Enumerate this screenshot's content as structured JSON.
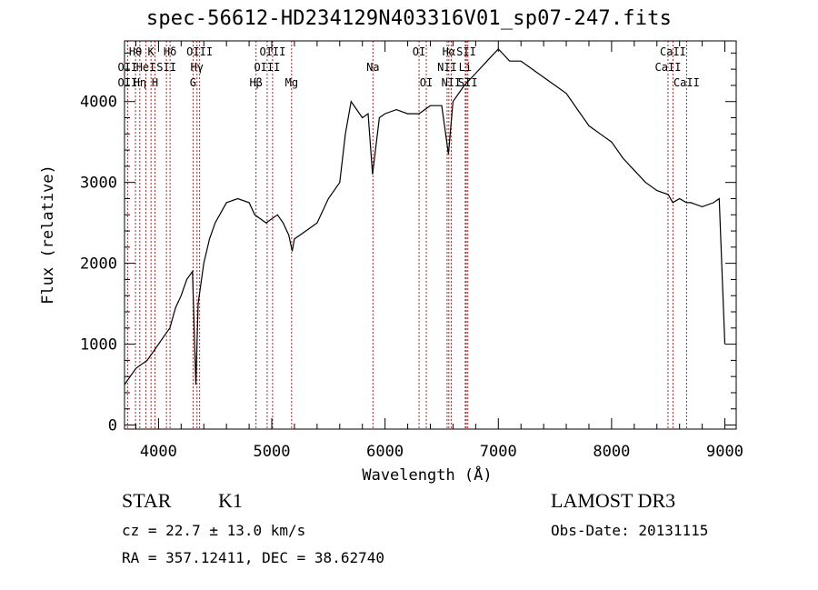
{
  "title": "spec-56612-HD234129N403316V01_sp07-247.fits",
  "chart_data": {
    "type": "line",
    "xlabel": "Wavelength (Å)",
    "ylabel": "Flux (relative)",
    "xlim": [
      3700,
      9100
    ],
    "ylim": [
      -50,
      4750
    ],
    "xticks": [
      4000,
      5000,
      6000,
      7000,
      8000,
      9000
    ],
    "yticks": [
      0,
      1000,
      2000,
      3000,
      4000
    ],
    "spectrum": {
      "x": [
        3700,
        3750,
        3800,
        3850,
        3900,
        3950,
        4000,
        4050,
        4100,
        4150,
        4200,
        4250,
        4300,
        4330,
        4350,
        4400,
        4450,
        4500,
        4600,
        4700,
        4800,
        4850,
        4900,
        4950,
        5000,
        5050,
        5100,
        5150,
        5180,
        5200,
        5300,
        5400,
        5500,
        5600,
        5650,
        5700,
        5750,
        5800,
        5850,
        5890,
        5950,
        6000,
        6100,
        6200,
        6300,
        6400,
        6500,
        6560,
        6600,
        6700,
        6800,
        6900,
        7000,
        7100,
        7200,
        7300,
        7400,
        7500,
        7600,
        7700,
        7800,
        7900,
        8000,
        8100,
        8200,
        8300,
        8400,
        8500,
        8540,
        8600,
        8660,
        8700,
        8800,
        8900,
        8950,
        9000
      ],
      "y": [
        500,
        600,
        700,
        750,
        800,
        900,
        1000,
        1100,
        1200,
        1450,
        1600,
        1800,
        1900,
        500,
        1500,
        2000,
        2300,
        2500,
        2750,
        2800,
        2750,
        2600,
        2550,
        2500,
        2550,
        2600,
        2500,
        2350,
        2150,
        2300,
        2400,
        2500,
        2800,
        3000,
        3600,
        4000,
        3900,
        3800,
        3850,
        3100,
        3800,
        3850,
        3900,
        3850,
        3850,
        3950,
        3950,
        3350,
        4000,
        4200,
        4350,
        4500,
        4650,
        4500,
        4500,
        4400,
        4300,
        4200,
        4100,
        3900,
        3700,
        3600,
        3500,
        3300,
        3150,
        3000,
        2900,
        2850,
        2750,
        2800,
        2750,
        2750,
        2700,
        2750,
        2800,
        1000
      ]
    },
    "lines": [
      {
        "label": "Hθ",
        "x": 3797,
        "row": 1
      },
      {
        "label": "OII",
        "x": 3727,
        "row": 2
      },
      {
        "label": "OII",
        "x": 3727,
        "row": 3
      },
      {
        "label": "K",
        "x": 3934,
        "row": 1
      },
      {
        "label": "HeI",
        "x": 3889,
        "row": 2
      },
      {
        "label": "Hη",
        "x": 3835,
        "row": 3
      },
      {
        "label": "Hδ",
        "x": 4102,
        "row": 1
      },
      {
        "label": "SII",
        "x": 4070,
        "row": 2
      },
      {
        "label": "H",
        "x": 3969,
        "row": 3
      },
      {
        "label": "OIII",
        "x": 4363,
        "row": 1
      },
      {
        "label": "Hγ",
        "x": 4340,
        "row": 2
      },
      {
        "label": "G",
        "x": 4305,
        "row": 3
      },
      {
        "label": "OIII",
        "x": 5007,
        "row": 1
      },
      {
        "label": "OIII",
        "x": 4959,
        "row": 2
      },
      {
        "label": "Hβ",
        "x": 4861,
        "row": 3
      },
      {
        "label": "Mg",
        "x": 5175,
        "row": 3
      },
      {
        "label": "Na",
        "x": 5893,
        "row": 2
      },
      {
        "label": "OI",
        "x": 6300,
        "row": 1
      },
      {
        "label": "OI",
        "x": 6364,
        "row": 3
      },
      {
        "label": "Hα",
        "x": 6563,
        "row": 1
      },
      {
        "label": "NII",
        "x": 6548,
        "row": 2
      },
      {
        "label": "NII",
        "x": 6584,
        "row": 3
      },
      {
        "label": "SII",
        "x": 6717,
        "row": 1
      },
      {
        "label": "Li",
        "x": 6708,
        "row": 2
      },
      {
        "label": "SII",
        "x": 6731,
        "row": 3
      },
      {
        "label": "CaII",
        "x": 8542,
        "row": 1
      },
      {
        "label": "CaII",
        "x": 8498,
        "row": 2
      },
      {
        "label": "CaII",
        "x": 8662,
        "row": 3
      }
    ]
  },
  "info": {
    "object_class": "STAR",
    "subclass": "K1",
    "survey": "LAMOST DR3",
    "cz": "cz = 22.7 ± 13.0 km/s",
    "obs_date": "Obs-Date: 20131115",
    "coords": "RA = 357.12411, DEC =  38.62740"
  },
  "colors": {
    "spectrum": "#000000",
    "line_markers": "#b22222",
    "axes": "#000000"
  }
}
